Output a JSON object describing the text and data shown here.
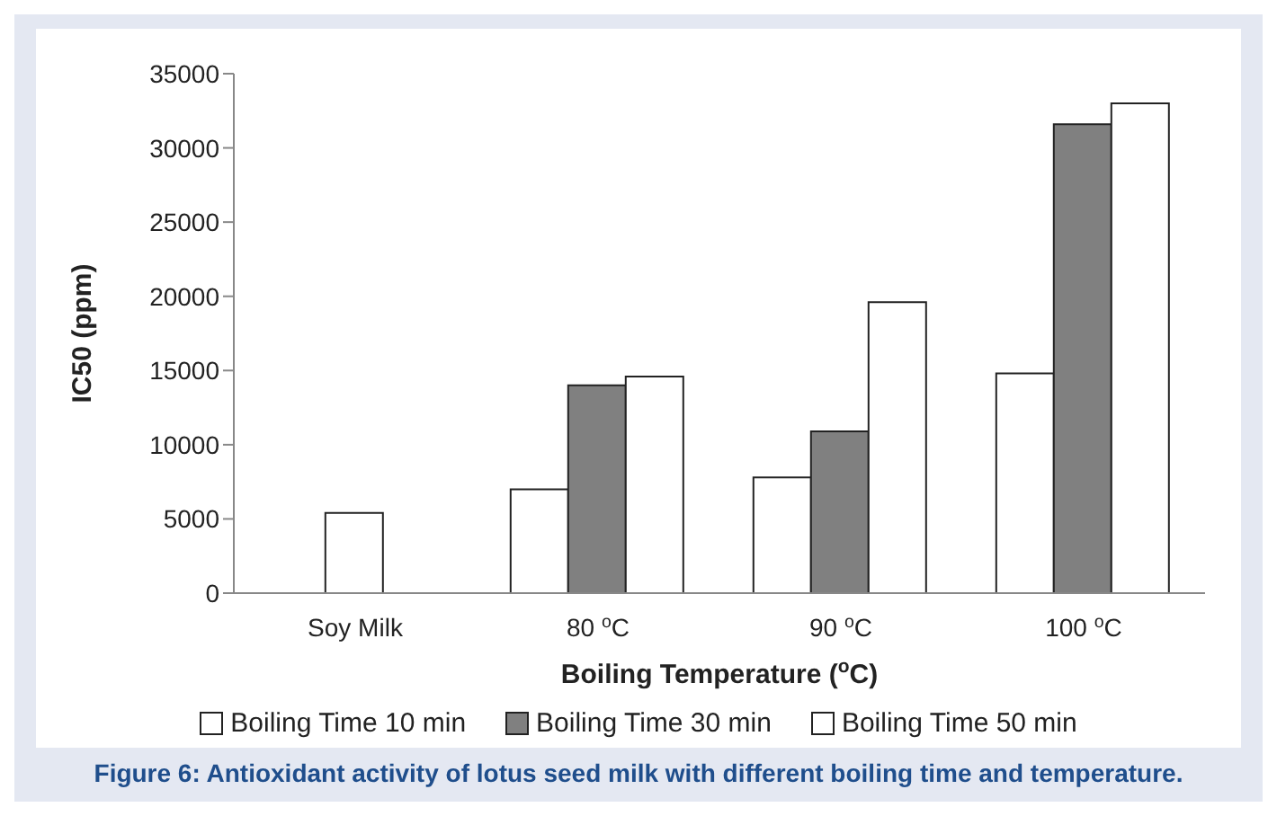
{
  "chart_data": {
    "type": "bar",
    "categories": [
      "Soy Milk",
      "80 $^{o}$C",
      "90 $^{o}$C",
      "100 $^{o}$C"
    ],
    "series": [
      {
        "name": "Boiling Time 10 min",
        "color": "#ffffff",
        "values": [
          null,
          7000,
          7800,
          14800
        ]
      },
      {
        "name": "Boiling Time 30 min",
        "color": "#808080",
        "values": [
          null,
          14000,
          10900,
          31600
        ]
      },
      {
        "name": "Boiling Time 50 min",
        "color": "#ffffff",
        "values": [
          null,
          14600,
          19600,
          33000
        ]
      },
      {
        "color": "#ffffff",
        "values": [
          5400,
          null,
          null,
          null
        ]
      }
    ],
    "ylim": [
      0,
      35000
    ],
    "yticks": [
      0,
      5000,
      10000,
      15000,
      20000,
      25000,
      30000,
      35000
    ],
    "xlabel": "Boiling Temperature ($^{o}$C)",
    "ylabel": "IC50 (ppm)",
    "grid": false,
    "legend": "bottom",
    "annotations": [
      "Figure 6: Antioxidant activity of lotus seed milk with different boiling time and temperature."
    ]
  }
}
